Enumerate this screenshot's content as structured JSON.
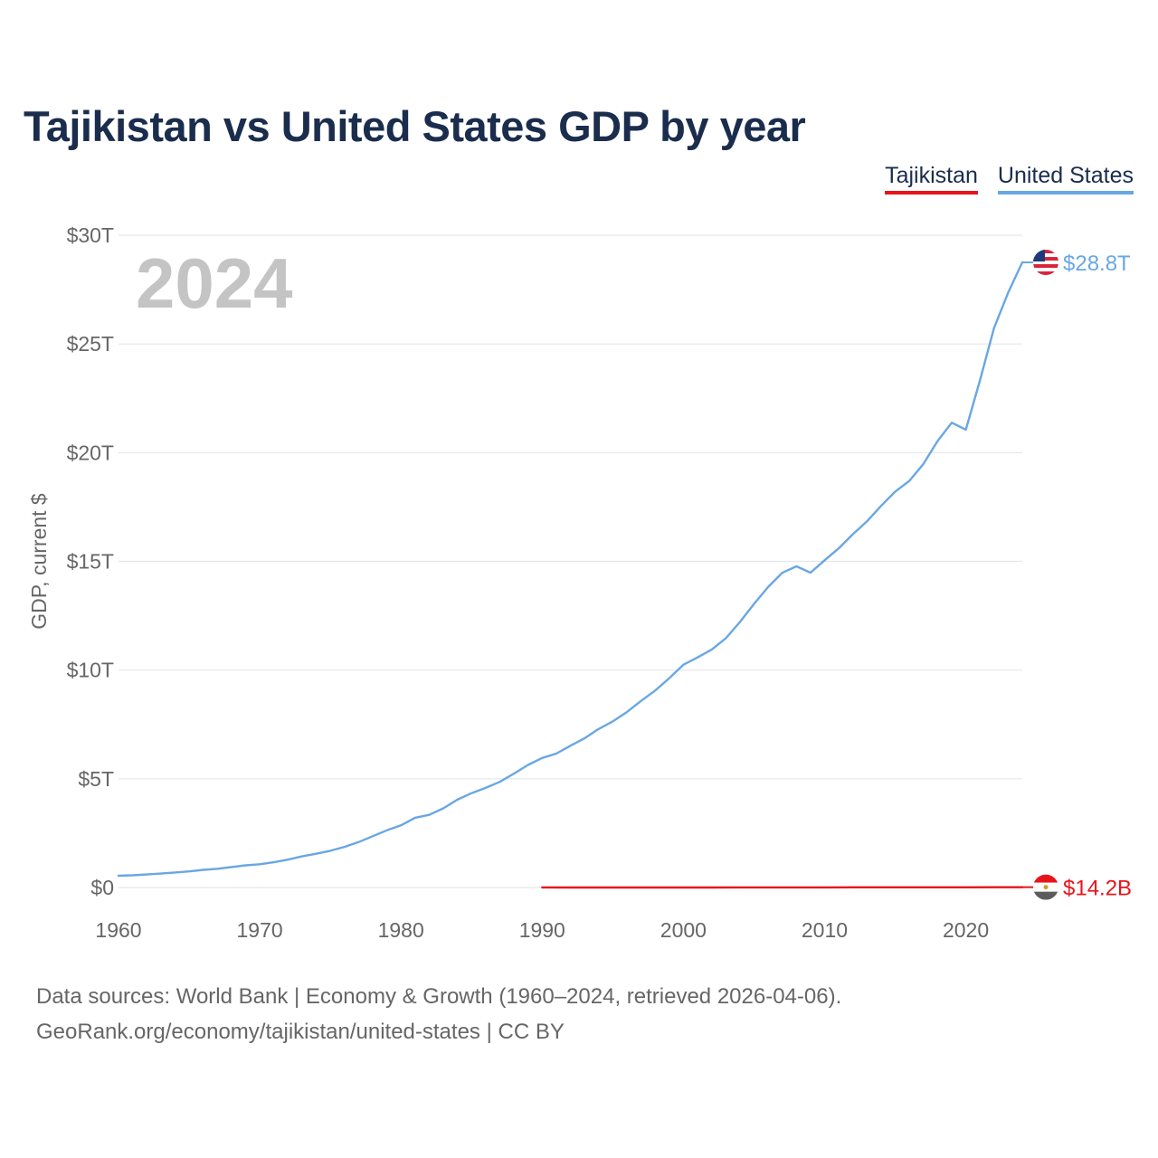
{
  "header": {
    "title": "Tajikistan vs United States GDP by year"
  },
  "legend": {
    "items": [
      {
        "label": "Tajikistan"
      },
      {
        "label": "United States"
      }
    ]
  },
  "year_watermark": "2024",
  "end_labels": {
    "united_states": "$28.8T",
    "tajikistan": "$14.2B"
  },
  "colors": {
    "tajikistan": "#e8141c",
    "united_states": "#69a7e3"
  },
  "footer": {
    "line1": "Data sources: World Bank | Economy & Growth (1960–2024, retrieved 2026-04-06).",
    "line2": "GeoRank.org/economy/tajikistan/united-states | CC BY"
  },
  "chart_data": {
    "type": "line",
    "title": "Tajikistan vs United States GDP by year",
    "xlabel": "",
    "ylabel": "GDP, current $",
    "xlim": [
      1960,
      2024
    ],
    "ylim": [
      0,
      30
    ],
    "units": "trillions of current US dollars",
    "grid": true,
    "legend_position": "top-right",
    "x_ticks": [
      1960,
      1970,
      1980,
      1990,
      2000,
      2010,
      2020
    ],
    "x_tick_labels": [
      "1960",
      "1970",
      "1980",
      "1990",
      "2000",
      "2010",
      "2020"
    ],
    "y_ticks": [
      0,
      5,
      10,
      15,
      20,
      25,
      30
    ],
    "y_tick_labels": [
      "$0",
      "$5T",
      "$10T",
      "$15T",
      "$20T",
      "$25T",
      "$30T"
    ],
    "series": [
      {
        "name": "United States",
        "color": "#69a7e3",
        "x": [
          1960,
          1961,
          1962,
          1963,
          1964,
          1965,
          1966,
          1967,
          1968,
          1969,
          1970,
          1971,
          1972,
          1973,
          1974,
          1975,
          1976,
          1977,
          1978,
          1979,
          1980,
          1981,
          1982,
          1983,
          1984,
          1985,
          1986,
          1987,
          1988,
          1989,
          1990,
          1991,
          1992,
          1993,
          1994,
          1995,
          1996,
          1997,
          1998,
          1999,
          2000,
          2001,
          2002,
          2003,
          2004,
          2005,
          2006,
          2007,
          2008,
          2009,
          2010,
          2011,
          2012,
          2013,
          2014,
          2015,
          2016,
          2017,
          2018,
          2019,
          2020,
          2021,
          2022,
          2023,
          2024
        ],
        "values": [
          0.54,
          0.56,
          0.6,
          0.64,
          0.69,
          0.74,
          0.81,
          0.86,
          0.94,
          1.02,
          1.07,
          1.16,
          1.28,
          1.43,
          1.55,
          1.69,
          1.87,
          2.09,
          2.36,
          2.63,
          2.86,
          3.21,
          3.34,
          3.64,
          4.04,
          4.34,
          4.58,
          4.86,
          5.24,
          5.64,
          5.96,
          6.16,
          6.52,
          6.86,
          7.29,
          7.64,
          8.07,
          8.58,
          9.06,
          9.63,
          10.25,
          10.58,
          10.94,
          11.46,
          12.21,
          13.04,
          13.82,
          14.47,
          14.77,
          14.48,
          15.05,
          15.6,
          16.25,
          16.84,
          17.55,
          18.21,
          18.7,
          19.48,
          20.53,
          21.38,
          21.06,
          23.32,
          25.74,
          27.36,
          28.75
        ]
      },
      {
        "name": "Tajikistan",
        "color": "#e8141c",
        "x": [
          1990,
          1992,
          1994,
          1996,
          1998,
          2000,
          2002,
          2004,
          2006,
          2008,
          2010,
          2012,
          2014,
          2016,
          2018,
          2020,
          2022,
          2024
        ],
        "values": [
          0.0026,
          0.0019,
          0.002,
          0.0012,
          0.0013,
          0.0009,
          0.0012,
          0.0021,
          0.0028,
          0.0052,
          0.0056,
          0.0076,
          0.0092,
          0.007,
          0.0076,
          0.0081,
          0.0105,
          0.0142
        ]
      }
    ]
  }
}
